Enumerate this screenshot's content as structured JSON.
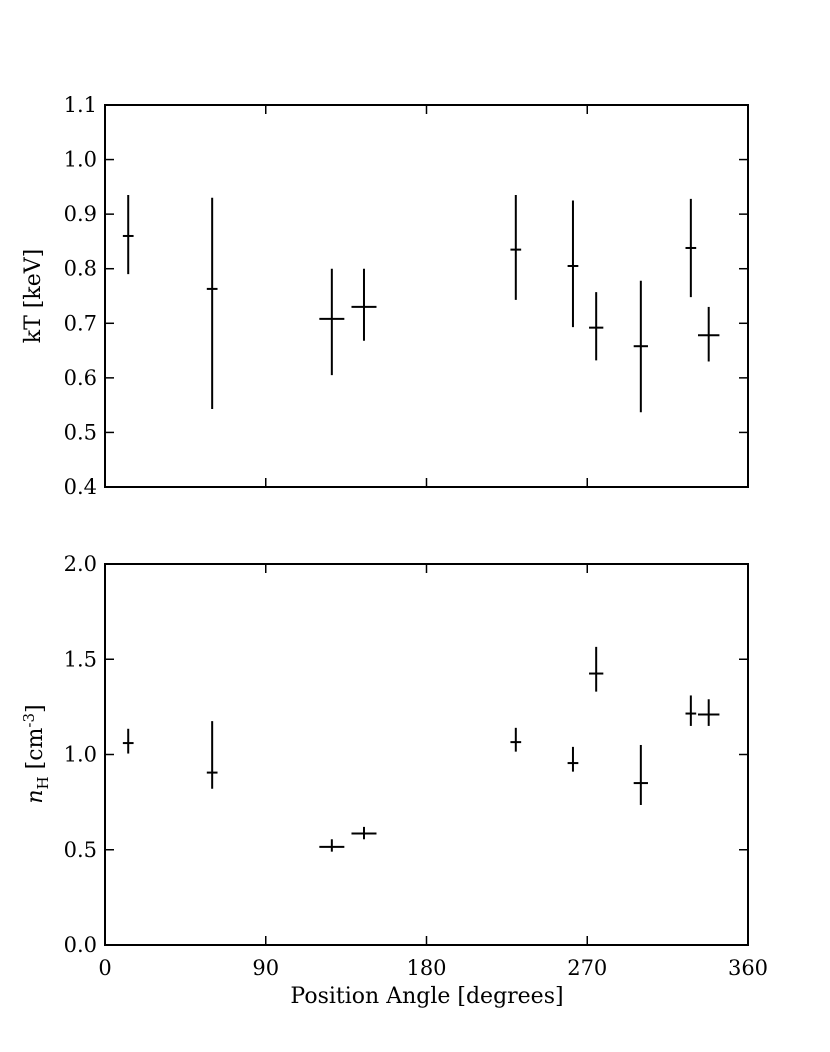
{
  "chart_data": [
    {
      "type": "scatter",
      "title": "",
      "xlabel": "",
      "ylabel": "kT [keV]",
      "xlim": [
        0,
        360
      ],
      "ylim": [
        0.4,
        1.1
      ],
      "xticks": [
        0,
        90,
        180,
        270,
        360
      ],
      "yticks": [
        0.4,
        0.5,
        0.6,
        0.7,
        0.8,
        0.9,
        1.0,
        1.1
      ],
      "yticklabels": [
        "0.4",
        "0.5",
        "0.6",
        "0.7",
        "0.8",
        "0.9",
        "1.0",
        "1.1"
      ],
      "show_xticklabels": false,
      "grid": false,
      "points": [
        {
          "x": 13,
          "xerr": 3,
          "y": 0.86,
          "ylo": 0.79,
          "yhi": 0.935
        },
        {
          "x": 60,
          "xerr": 3,
          "y": 0.763,
          "ylo": 0.543,
          "yhi": 0.93
        },
        {
          "x": 127,
          "xerr": 7,
          "y": 0.708,
          "ylo": 0.605,
          "yhi": 0.8
        },
        {
          "x": 145,
          "xerr": 7,
          "y": 0.73,
          "ylo": 0.668,
          "yhi": 0.8
        },
        {
          "x": 230,
          "xerr": 3,
          "y": 0.835,
          "ylo": 0.743,
          "yhi": 0.935
        },
        {
          "x": 262,
          "xerr": 3,
          "y": 0.805,
          "ylo": 0.693,
          "yhi": 0.925
        },
        {
          "x": 275,
          "xerr": 4,
          "y": 0.692,
          "ylo": 0.632,
          "yhi": 0.757
        },
        {
          "x": 300,
          "xerr": 4,
          "y": 0.658,
          "ylo": 0.537,
          "yhi": 0.778
        },
        {
          "x": 328,
          "xerr": 3,
          "y": 0.838,
          "ylo": 0.748,
          "yhi": 0.928
        },
        {
          "x": 338,
          "xerr": 6,
          "y": 0.678,
          "ylo": 0.63,
          "yhi": 0.73
        }
      ]
    },
    {
      "type": "scatter",
      "title": "",
      "xlabel": "Position Angle [degrees]",
      "ylabel_main": "n",
      "ylabel_sub": "H",
      "ylabel_unit": " [cm",
      "ylabel_sup": "-3",
      "ylabel_close": "]",
      "xlim": [
        0,
        360
      ],
      "ylim": [
        0.0,
        2.0
      ],
      "xticks": [
        0,
        90,
        180,
        270,
        360
      ],
      "xticklabels": [
        "0",
        "90",
        "180",
        "270",
        "360"
      ],
      "yticks": [
        0.0,
        0.5,
        1.0,
        1.5,
        2.0
      ],
      "yticklabels": [
        "0.0",
        "0.5",
        "1.0",
        "1.5",
        "2.0"
      ],
      "show_xticklabels": true,
      "grid": false,
      "points": [
        {
          "x": 13,
          "xerr": 3,
          "y": 1.06,
          "ylo": 1.005,
          "yhi": 1.135
        },
        {
          "x": 60,
          "xerr": 3,
          "y": 0.905,
          "ylo": 0.82,
          "yhi": 1.175
        },
        {
          "x": 127,
          "xerr": 7,
          "y": 0.515,
          "ylo": 0.49,
          "yhi": 0.555
        },
        {
          "x": 145,
          "xerr": 7,
          "y": 0.585,
          "ylo": 0.555,
          "yhi": 0.62
        },
        {
          "x": 230,
          "xerr": 3,
          "y": 1.065,
          "ylo": 1.015,
          "yhi": 1.14
        },
        {
          "x": 262,
          "xerr": 3,
          "y": 0.955,
          "ylo": 0.91,
          "yhi": 1.04
        },
        {
          "x": 275,
          "xerr": 4,
          "y": 1.425,
          "ylo": 1.33,
          "yhi": 1.565
        },
        {
          "x": 300,
          "xerr": 4,
          "y": 0.85,
          "ylo": 0.735,
          "yhi": 1.05
        },
        {
          "x": 328,
          "xerr": 3,
          "y": 1.215,
          "ylo": 1.15,
          "yhi": 1.31
        },
        {
          "x": 338,
          "xerr": 6,
          "y": 1.21,
          "ylo": 1.15,
          "yhi": 1.29
        }
      ]
    }
  ]
}
